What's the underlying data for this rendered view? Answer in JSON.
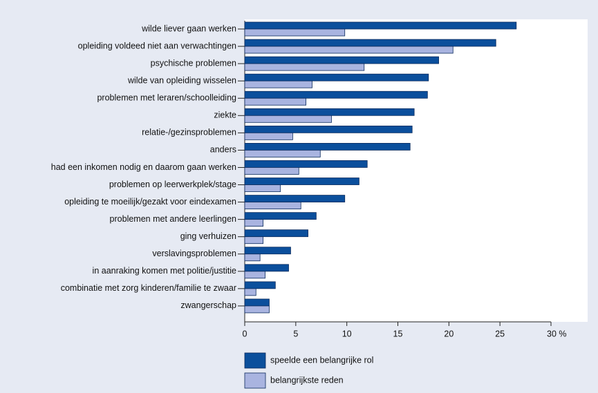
{
  "chart_data": {
    "type": "hbar",
    "categories": [
      "wilde liever gaan werken",
      "opleiding voldeed niet aan verwachtingen",
      "psychische problemen",
      "wilde van opleiding wisselen",
      "problemen met leraren/schoolleiding",
      "ziekte",
      "relatie-/gezinsproblemen",
      "anders",
      "had een inkomen nodig en daarom gaan werken",
      "problemen op leerwerkplek/stage",
      "opleiding te moeilijk/gezakt voor eindexamen",
      "problemen met andere leerlingen",
      "ging verhuizen",
      "verslavingsproblemen",
      "in aanraking komen met politie/justitie",
      "combinatie met zorg kinderen/familie te zwaar",
      "zwangerschap"
    ],
    "series": [
      {
        "name": "speelde een belangrijke rol",
        "color": "#0b4f9c",
        "values": [
          26.6,
          24.6,
          19.0,
          18.0,
          17.9,
          16.6,
          16.4,
          16.2,
          12.0,
          11.2,
          9.8,
          7.0,
          6.2,
          4.5,
          4.3,
          3.0,
          2.4
        ]
      },
      {
        "name": "belangrijkste reden",
        "color": "#a9b4e0",
        "values": [
          9.8,
          20.4,
          11.7,
          6.6,
          6.0,
          8.5,
          4.7,
          7.4,
          5.3,
          3.5,
          5.5,
          1.8,
          1.8,
          1.5,
          2.0,
          1.1,
          2.4
        ]
      }
    ],
    "xlim": [
      0,
      30
    ],
    "xticks": [
      0,
      5,
      10,
      15,
      20,
      25,
      {
        "value": 30,
        "label": "30 %"
      }
    ]
  }
}
